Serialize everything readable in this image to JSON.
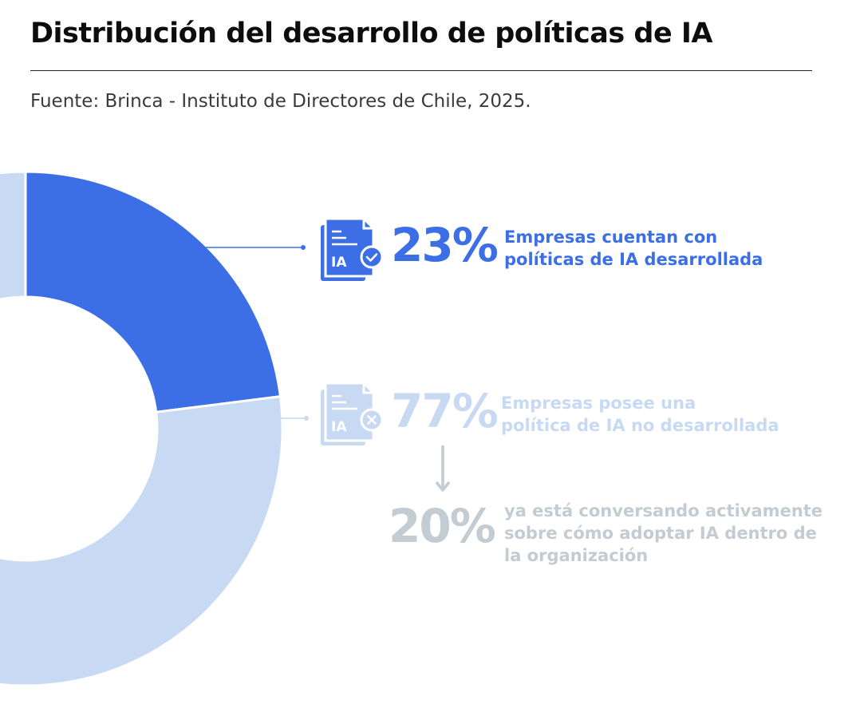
{
  "title": "Distribución del desarrollo de políticas de IA",
  "source": "Fuente: Brinca - Instituto de Directores de Chile, 2025.",
  "colors": {
    "developed": "#3c6fe6",
    "not_developed": "#c8daf3",
    "conversing": "#c3cbd3"
  },
  "icons": {
    "developed": "document-check-icon",
    "not_developed": "document-x-icon",
    "arrow": "arrow-down-icon"
  },
  "icon_label": "IA",
  "chart_data": {
    "type": "pie",
    "style": "donut",
    "categories": [
      "Empresas cuentan con políticas de IA desarrollada",
      "Empresas posee una política de IA no desarrollada"
    ],
    "values": [
      23,
      77
    ],
    "unit": "%",
    "colors": [
      "#3c6fe6",
      "#c8daf3"
    ],
    "annotations": [
      {
        "value": "23%",
        "line1": "Empresas cuentan con",
        "line2": "políticas de IA desarrollada"
      },
      {
        "value": "77%",
        "line1": "Empresas posee una",
        "line2": "política de IA no desarrollada"
      },
      {
        "value": "20%",
        "line1": "ya está conversando activamente",
        "line2": "sobre cómo adoptar IA dentro de",
        "line3": "la organización"
      }
    ]
  }
}
